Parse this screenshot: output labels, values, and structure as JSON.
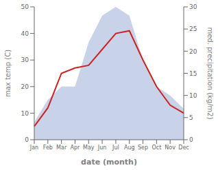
{
  "chart_data": {
    "type": "line",
    "xlabel": "date (month)",
    "ylabel": "max temp (C)",
    "y2label": "med. precipitation (kg/m2)",
    "categories": [
      "Jan",
      "Feb",
      "Mar",
      "Apr",
      "May",
      "Jun",
      "Jul",
      "Aug",
      "Sep",
      "Oct",
      "Nov",
      "Dec"
    ],
    "series": [
      {
        "type": "area",
        "axis": "y2",
        "color": "#aabbdd",
        "values": [
          4,
          9,
          12,
          12,
          22,
          28,
          30,
          28,
          18,
          12,
          10,
          7
        ]
      },
      {
        "type": "line",
        "axis": "y",
        "color": "#cc2222",
        "values": [
          5,
          12,
          25,
          27,
          28,
          34,
          40,
          41,
          30,
          20,
          13,
          10
        ]
      }
    ],
    "ylim": [
      0,
      50
    ],
    "yticks": [
      0,
      10,
      20,
      30,
      40,
      50
    ],
    "y2lim": [
      0,
      30
    ],
    "y2ticks": [
      0,
      5,
      10,
      15,
      20,
      25,
      30
    ],
    "grid": false
  }
}
